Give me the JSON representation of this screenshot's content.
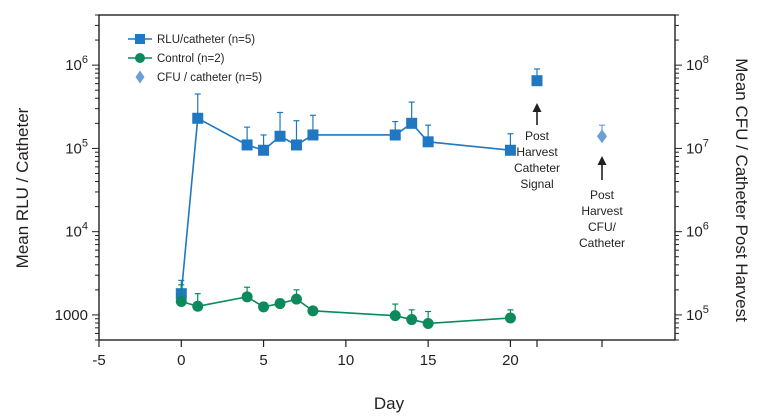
{
  "chart_data": {
    "type": "line",
    "xlabel": "Day",
    "ylabel_left": "Mean RLU / Catheter",
    "ylabel_right": "Mean CFU / Catheter Post Harvest",
    "xlim": [
      -5,
      30
    ],
    "x_ticks": [
      -5,
      0,
      5,
      10,
      15,
      20
    ],
    "ylim_left": [
      500,
      4000000
    ],
    "yscale_left": "log",
    "y_ticks_left": [
      {
        "value": 1000,
        "base": "1000",
        "exp": ""
      },
      {
        "value": 10000,
        "base": "10",
        "exp": "4"
      },
      {
        "value": 100000,
        "base": "10",
        "exp": "5"
      },
      {
        "value": 1000000,
        "base": "10",
        "exp": "6"
      }
    ],
    "ylim_right": [
      50000,
      400000000
    ],
    "yscale_right": "log",
    "y_ticks_right": [
      {
        "value": 100000,
        "base": "10",
        "exp": "5"
      },
      {
        "value": 1000000,
        "base": "10",
        "exp": "6"
      },
      {
        "value": 10000000,
        "base": "10",
        "exp": "7"
      },
      {
        "value": 100000000,
        "base": "10",
        "exp": "8"
      }
    ],
    "legend_position": "top-left",
    "series": [
      {
        "name": "RLU/catheter (n=5)",
        "color": "#1f78c1",
        "marker": "square",
        "axis": "left",
        "x": [
          0,
          1,
          4,
          5,
          6,
          7,
          8,
          13,
          14,
          15,
          20
        ],
        "y": [
          1800,
          230000,
          110000,
          95000,
          140000,
          110000,
          145000,
          145000,
          200000,
          120000,
          95000
        ],
        "err": [
          2600,
          450000,
          180000,
          145000,
          270000,
          215000,
          250000,
          210000,
          360000,
          190000,
          150000
        ]
      },
      {
        "name": "Control (n=2)",
        "color": "#0c8a5c",
        "marker": "circle",
        "axis": "left",
        "x": [
          0,
          1,
          4,
          5,
          6,
          7,
          8,
          13,
          14,
          15,
          20
        ],
        "y": [
          1450,
          1270,
          1650,
          1250,
          1370,
          1550,
          1120,
          980,
          880,
          790,
          920
        ],
        "err": [
          2300,
          1800,
          2150,
          1400,
          1550,
          2000,
          1120,
          1350,
          1150,
          1100,
          1150
        ]
      },
      {
        "name": "CFU / catheter (n=5)",
        "color": "#6b9fd8",
        "marker": "diamond",
        "axis": "right",
        "x_slot": "harvest-cfu",
        "y": [
          14000000
        ],
        "err": [
          19000000
        ]
      }
    ],
    "harvest_signal": {
      "series": "RLU/catheter (n=5)",
      "y": 650000,
      "err": 900000
    },
    "annotations": [
      {
        "lines": [
          "Post",
          "Harvest",
          "Catheter",
          "Signal"
        ]
      },
      {
        "lines": [
          "Post",
          "Harvest",
          "CFU/",
          "Catheter"
        ]
      }
    ]
  }
}
